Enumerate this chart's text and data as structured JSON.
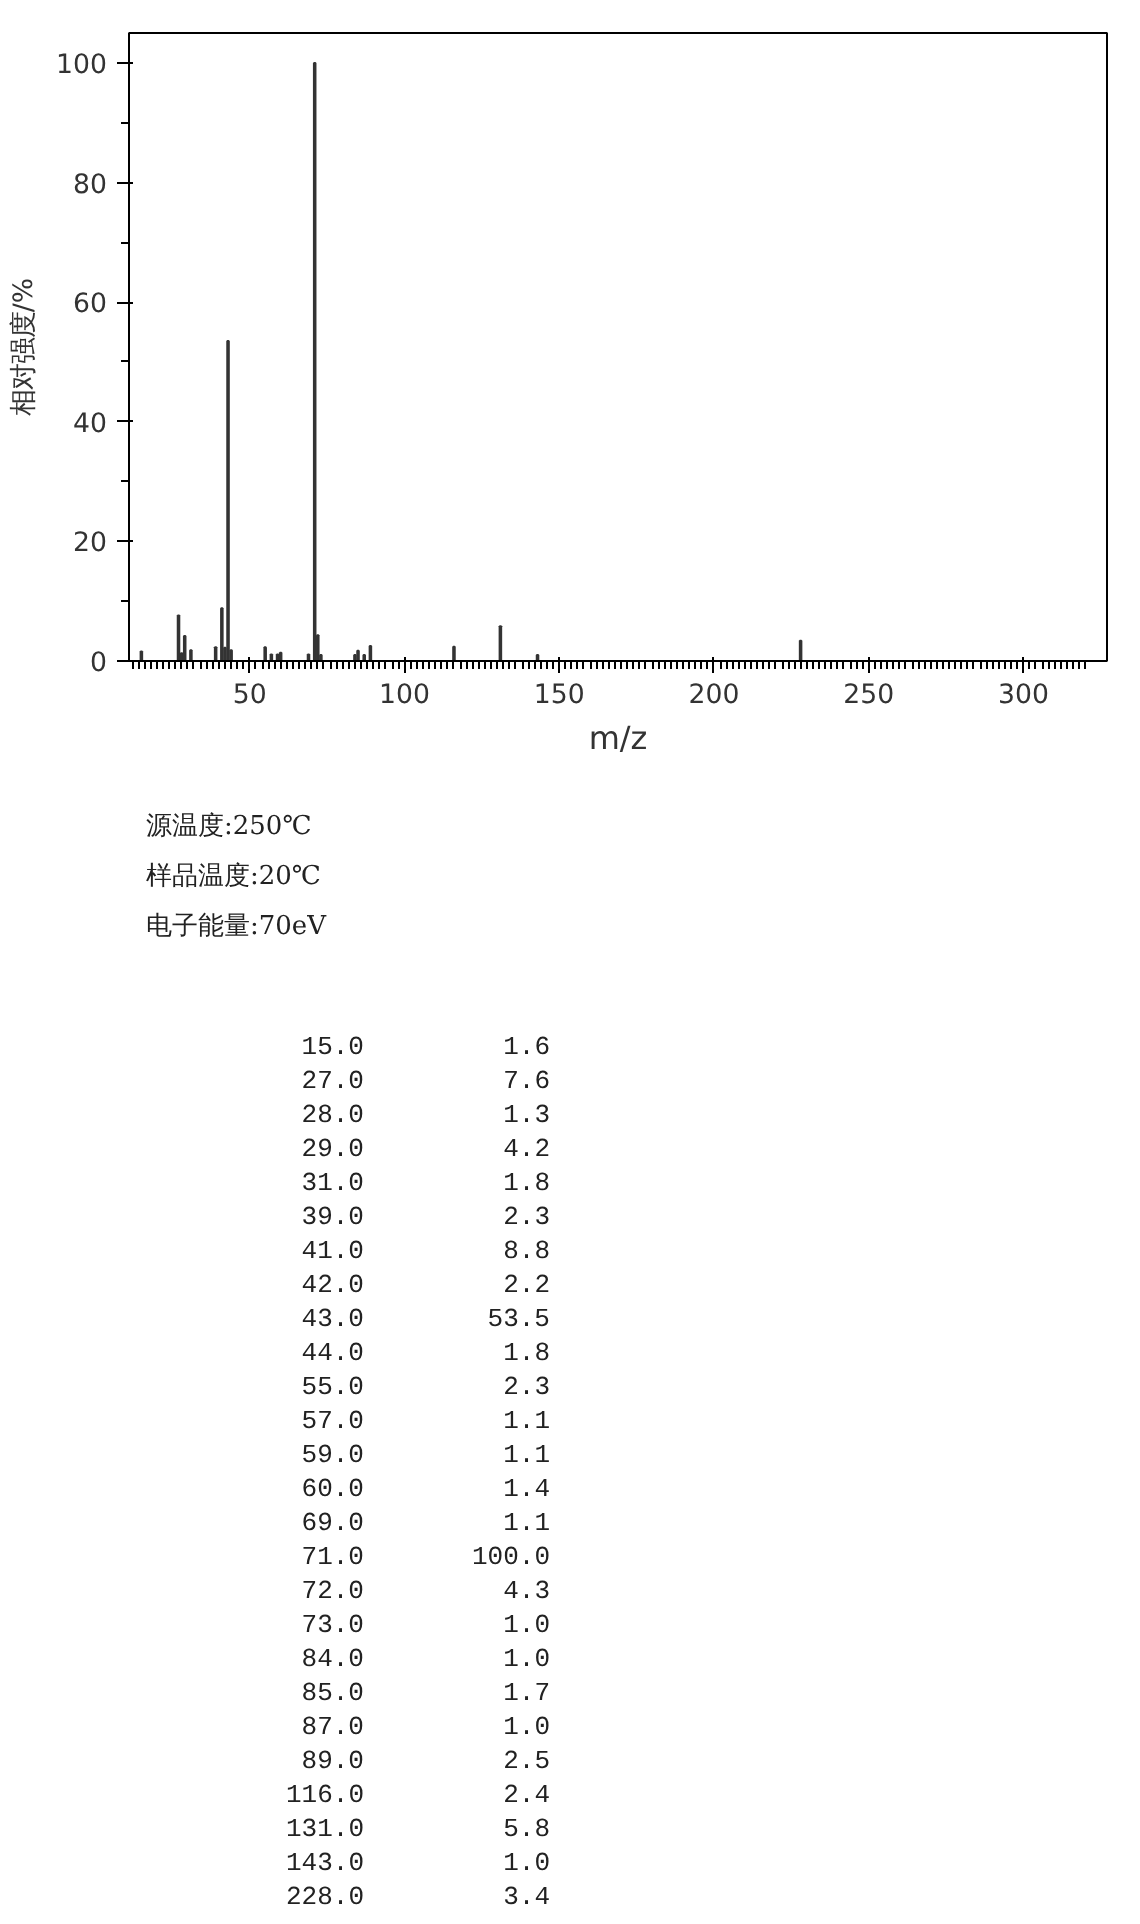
{
  "chart_data": [
    {
      "type": "bar",
      "xlabel": "m/z",
      "ylabel": "相对强度/%",
      "x": [
        15.0,
        27.0,
        28.0,
        29.0,
        31.0,
        39.0,
        41.0,
        42.0,
        43.0,
        44.0,
        55.0,
        57.0,
        59.0,
        60.0,
        69.0,
        71.0,
        72.0,
        73.0,
        84.0,
        85.0,
        87.0,
        89.0,
        116.0,
        131.0,
        143.0,
        228.0
      ],
      "values": [
        1.6,
        7.6,
        1.3,
        4.2,
        1.8,
        2.3,
        8.8,
        2.2,
        53.5,
        1.8,
        2.3,
        1.1,
        1.1,
        1.4,
        1.1,
        100.0,
        4.3,
        1.0,
        1.0,
        1.7,
        1.0,
        2.5,
        2.4,
        5.8,
        1.0,
        3.4
      ],
      "color": "#333333",
      "xlim": [
        11,
        327
      ],
      "xticks": [
        50,
        100,
        150,
        200,
        250,
        300
      ],
      "ylim": [
        0,
        105
      ],
      "yticks": [
        0,
        20,
        40,
        60,
        80,
        100
      ],
      "grid": false,
      "annotations": [
        "源温度:250℃",
        "样品温度:20℃",
        "电子能量:70eV"
      ]
    },
    {
      "type": "other",
      "categories": [
        "15.0",
        "27.0",
        "28.0",
        "29.0",
        "31.0",
        "39.0",
        "41.0",
        "42.0",
        "43.0",
        "44.0",
        "55.0",
        "57.0",
        "59.0",
        "60.0",
        "69.0",
        "71.0",
        "72.0",
        "73.0",
        "84.0",
        "85.0",
        "87.0",
        "89.0",
        "116.0",
        "131.0",
        "143.0",
        "228.0"
      ],
      "value_labels": [
        "1.6",
        "7.6",
        "1.3",
        "4.2",
        "1.8",
        "2.3",
        "8.8",
        "2.2",
        "53.5",
        "1.8",
        "2.3",
        "1.1",
        "1.1",
        "1.4",
        "1.1",
        "100.0",
        "4.3",
        "1.0",
        "1.0",
        "1.7",
        "1.0",
        "2.5",
        "2.4",
        "5.8",
        "1.0",
        "3.4"
      ],
      "values": [
        1.6,
        7.6,
        1.3,
        4.2,
        1.8,
        2.3,
        8.8,
        2.2,
        53.5,
        1.8,
        2.3,
        1.1,
        1.1,
        1.4,
        1.1,
        100.0,
        4.3,
        1.0,
        1.0,
        1.7,
        1.0,
        2.5,
        2.4,
        5.8,
        1.0,
        3.4
      ]
    }
  ]
}
